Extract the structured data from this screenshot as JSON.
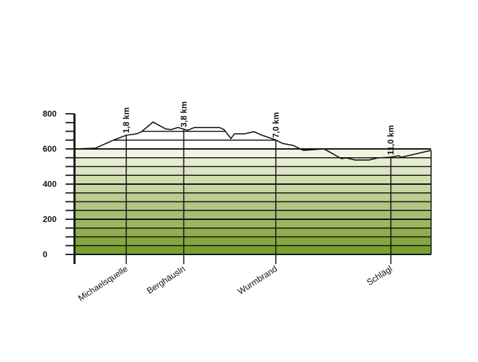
{
  "chart_data": {
    "type": "area",
    "title": "",
    "xlabel": "",
    "ylabel": "",
    "ylim": [
      0,
      800
    ],
    "xlim": [
      0,
      12.4
    ],
    "y_ticks": [
      "0",
      "200",
      "400",
      "600",
      "800"
    ],
    "band_step": 50,
    "colors": {
      "band_low": "#7a9f30",
      "band_high": "#f1f4e2",
      "line": "#111111"
    },
    "profile": {
      "x_km": [
        0,
        0.72,
        1.37,
        1.8,
        2.16,
        2.33,
        2.73,
        3.17,
        3.36,
        3.6,
        3.93,
        4.17,
        5.04,
        5.2,
        5.44,
        5.56,
        5.92,
        6.24,
        6.52,
        7.0,
        7.24,
        7.6,
        7.96,
        8.68,
        9.28,
        9.45,
        9.76,
        10.24,
        10.55,
        10.96,
        11.27,
        11.37,
        11.8,
        12.4
      ],
      "elevation_m": [
        600,
        604,
        651,
        678,
        686,
        698,
        753,
        714,
        710,
        722,
        706,
        722,
        722,
        710,
        659,
        686,
        686,
        698,
        678,
        651,
        631,
        620,
        592,
        600,
        545,
        549,
        537,
        537,
        549,
        553,
        561,
        553,
        569,
        592
      ]
    },
    "markers": [
      {
        "km": 1.8,
        "distance_label": "1,8 km",
        "place": "Michaelsquelle"
      },
      {
        "km": 3.8,
        "distance_label": "3,8 km",
        "place": "Berghäusln"
      },
      {
        "km": 7.0,
        "distance_label": "7,0 km",
        "place": "Wurmbrand"
      },
      {
        "km": 11.0,
        "distance_label": "11,0 km",
        "place": "Schlägl"
      }
    ]
  }
}
